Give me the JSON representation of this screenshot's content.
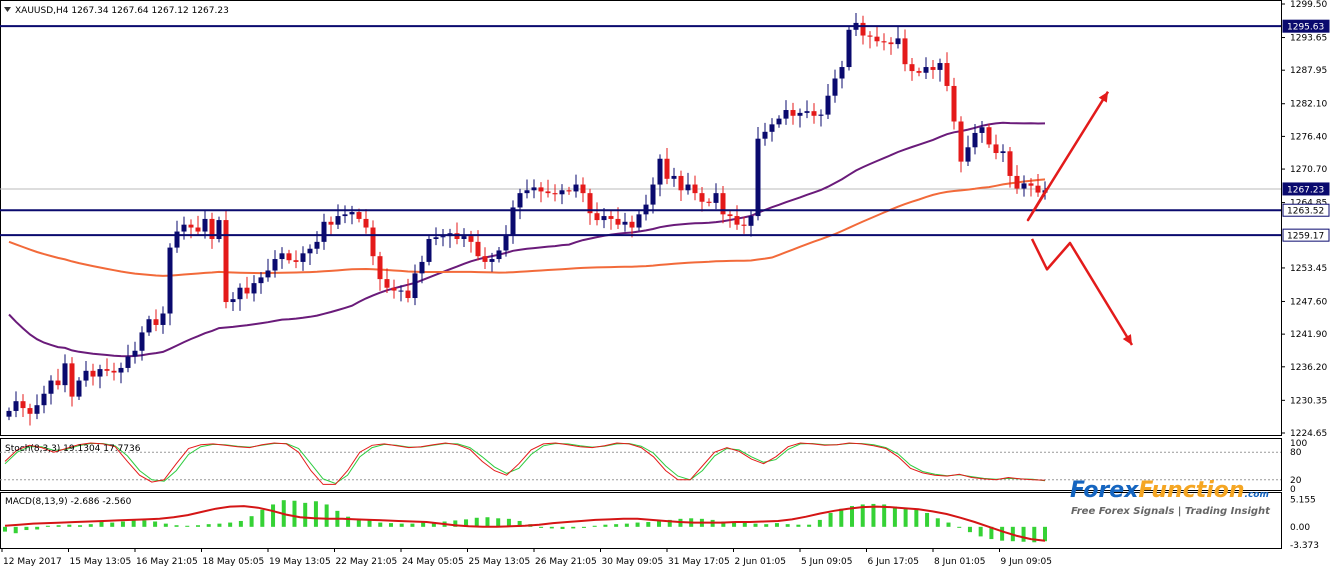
{
  "header": {
    "symbol_line": "XAUUSD,H4  1267.34 1267.64 1267.12 1267.23",
    "dropdown_icon": "triangle-down-icon"
  },
  "colors": {
    "bull_candle": "#0a0a6e",
    "bear_candle": "#e41a1a",
    "level_line": "#0a0a6e",
    "ma_fast": "#6a1b7a",
    "ma_slow": "#f26a3a",
    "arrow": "#e31b1b",
    "stoch_main": "#e41a1a",
    "stoch_signal": "#2ecc40",
    "macd_hist": "#35d235",
    "macd_signal": "#d41515",
    "brand_blue": "#1565c0",
    "brand_orange": "#f5a623"
  },
  "chart_data": [
    {
      "type": "candlestick",
      "title": "XAUUSD,H4",
      "ohlc_readout": [
        1267.34,
        1267.64,
        1267.12,
        1267.23
      ],
      "ylim": [
        1224.65,
        1299.5
      ],
      "y_ticks": [
        "1299.50",
        "1293.65",
        "1287.95",
        "1282.10",
        "1276.40",
        "1270.70",
        "1264.85",
        "1253.45",
        "1247.60",
        "1241.90",
        "1236.20",
        "1230.35",
        "1224.65"
      ],
      "price_labels": [
        {
          "value": 1295.63,
          "text": "1295.63",
          "style": "dark"
        },
        {
          "value": 1267.23,
          "text": "1267.23",
          "style": "dark"
        },
        {
          "value": 1263.52,
          "text": "1263.52",
          "style": "light"
        },
        {
          "value": 1259.17,
          "text": "1259.17",
          "style": "light"
        }
      ],
      "horizontal_levels": [
        1295.63,
        1263.52,
        1259.17
      ],
      "current_price": 1267.23,
      "x_labels": [
        "12 May 2017",
        "15 May 13:05",
        "16 May 21:05",
        "18 May 05:05",
        "19 May 13:05",
        "22 May 21:05",
        "24 May 05:05",
        "25 May 13:05",
        "26 May 21:05",
        "30 May 09:05",
        "31 May 17:05",
        "2 Jun 01:05",
        "5 Jun 09:05",
        "6 Jun 17:05",
        "8 Jun 01:05",
        "9 Jun 09:05"
      ],
      "candle_closes": [
        1228.5,
        1230.2,
        1229.0,
        1228.0,
        1229.5,
        1231.5,
        1233.8,
        1233.0,
        1236.8,
        1231.0,
        1233.8,
        1235.5,
        1234.5,
        1235.8,
        1235.5,
        1235.2,
        1236.0,
        1238.0,
        1239.0,
        1242.2,
        1244.5,
        1243.5,
        1245.5,
        1257.0,
        1259.8,
        1261.0,
        1260.5,
        1259.8,
        1262.0,
        1258.5,
        1261.8,
        1247.5,
        1248.0,
        1250.0,
        1249.0,
        1250.8,
        1251.8,
        1253.0,
        1255.0,
        1256.0,
        1254.8,
        1254.5,
        1256.0,
        1256.8,
        1258.0,
        1261.5,
        1261.0,
        1262.5,
        1262.8,
        1263.2,
        1262.0,
        1260.5,
        1255.5,
        1251.5,
        1250.0,
        1249.5,
        1249.5,
        1248.2,
        1252.5,
        1254.5,
        1258.5,
        1258.8,
        1259.0,
        1259.5,
        1258.5,
        1259.0,
        1258.0,
        1255.5,
        1254.5,
        1255.0,
        1256.5,
        1259.2,
        1264.0,
        1266.5,
        1267.0,
        1267.5,
        1266.8,
        1266.5,
        1266.3,
        1267.0,
        1266.8,
        1268.0,
        1266.5,
        1263.0,
        1261.8,
        1262.5,
        1262.0,
        1261.0,
        1261.5,
        1260.5,
        1262.8,
        1264.5,
        1268.0,
        1272.5,
        1269.0,
        1269.5,
        1267.0,
        1268.0,
        1266.5,
        1265.0,
        1264.8,
        1266.5,
        1262.8,
        1262.5,
        1261.0,
        1260.8,
        1262.5,
        1276.0,
        1277.2,
        1278.5,
        1279.5,
        1281.0,
        1280.0,
        1280.5,
        1280.8,
        1280.0,
        1280.2,
        1283.5,
        1286.5,
        1288.5,
        1295.0,
        1296.2,
        1294.0,
        1293.8,
        1293.0,
        1292.8,
        1292.5,
        1293.5,
        1289.0,
        1287.8,
        1287.5,
        1288.5,
        1288.0,
        1289.2,
        1285.2,
        1279.0,
        1272.0,
        1274.5,
        1277.0,
        1278.0,
        1275.0,
        1273.5,
        1273.8,
        1269.5,
        1267.3,
        1268.2,
        1267.8,
        1266.6,
        1267.0
      ]
    },
    {
      "type": "line",
      "title": "Stoch(8,3,3) 19.1304 17.7736",
      "ylim": [
        0,
        100
      ],
      "y_ticks": [
        "100",
        "80",
        "20",
        "0"
      ],
      "series": [
        {
          "name": "main",
          "values": [
            60,
            85,
            95,
            90,
            80,
            88,
            96,
            100,
            98,
            92,
            60,
            30,
            15,
            20,
            55,
            88,
            96,
            98,
            95,
            92,
            90,
            96,
            100,
            98,
            80,
            40,
            10,
            10,
            40,
            80,
            95,
            98,
            94,
            90,
            92,
            96,
            100,
            96,
            86,
            60,
            40,
            30,
            55,
            85,
            98,
            100,
            96,
            92,
            90,
            94,
            100,
            98,
            90,
            70,
            40,
            20,
            20,
            50,
            80,
            90,
            82,
            65,
            55,
            70,
            92,
            100,
            98,
            95,
            96,
            100,
            98,
            94,
            88,
            70,
            45,
            35,
            30,
            28,
            32,
            25,
            22,
            20,
            25,
            22,
            20,
            19
          ]
        },
        {
          "name": "signal",
          "values": [
            55,
            80,
            92,
            92,
            84,
            86,
            94,
            99,
            99,
            94,
            72,
            40,
            20,
            17,
            40,
            75,
            92,
            97,
            96,
            93,
            91,
            95,
            99,
            99,
            88,
            55,
            22,
            12,
            30,
            70,
            90,
            97,
            95,
            91,
            91,
            95,
            99,
            98,
            90,
            70,
            48,
            34,
            45,
            75,
            94,
            99,
            98,
            94,
            91,
            93,
            98,
            99,
            93,
            78,
            50,
            28,
            20,
            40,
            72,
            88,
            85,
            70,
            58,
            64,
            86,
            98,
            99,
            96,
            96,
            99,
            99,
            96,
            90,
            76,
            52,
            38,
            32,
            29,
            31,
            27,
            23,
            21,
            23,
            22,
            21,
            18
          ]
        }
      ],
      "last_values": [
        19.1304,
        17.7736
      ]
    },
    {
      "type": "bar",
      "title": "MACD(8,13,9) -2.686 -2.560",
      "y_ticks": [
        "5.155",
        "0.00",
        "-3.373"
      ],
      "ylim": [
        -3.6,
        5.6
      ],
      "series": [
        {
          "name": "histogram",
          "values": [
            -0.9,
            -1.2,
            -0.6,
            -0.5,
            0.2,
            0.3,
            0.4,
            0.3,
            0.5,
            0.9,
            0.8,
            1.0,
            1.3,
            1.2,
            1.0,
            0.6,
            0.3,
            0.2,
            0.3,
            0.5,
            0.6,
            0.8,
            1.1,
            2.0,
            3.2,
            4.2,
            5.0,
            4.9,
            4.5,
            4.8,
            4.2,
            3.0,
            1.9,
            1.5,
            1.2,
            0.8,
            0.7,
            0.6,
            0.6,
            0.8,
            0.9,
            1.0,
            1.2,
            1.4,
            1.7,
            1.8,
            1.6,
            1.5,
            1.1,
            0.5,
            -0.2,
            -0.3,
            -0.4,
            -0.3,
            -0.2,
            0.2,
            0.4,
            0.5,
            0.6,
            0.8,
            0.9,
            1.1,
            1.3,
            1.5,
            1.6,
            1.5,
            1.3,
            1.0,
            0.9,
            0.8,
            0.6,
            0.5,
            0.7,
            0.5,
            0.4,
            0.4,
            1.3,
            2.6,
            3.4,
            3.9,
            4.2,
            4.3,
            4.2,
            3.8,
            3.6,
            3.2,
            2.6,
            1.6,
            0.8,
            0.0,
            -1.0,
            -1.8,
            -2.3,
            -2.6,
            -2.7,
            -2.8,
            -2.9,
            -2.7
          ]
        },
        {
          "name": "signal",
          "values": [
            0.2,
            0.4,
            0.6,
            0.7,
            0.8,
            0.9,
            1.0,
            1.1,
            1.2,
            1.3,
            1.4,
            1.5,
            1.8,
            2.2,
            2.8,
            3.4,
            3.8,
            3.9,
            3.6,
            3.0,
            2.3,
            1.8,
            1.6,
            1.5,
            1.5,
            1.4,
            1.3,
            1.2,
            1.1,
            1.0,
            0.9,
            0.6,
            0.3,
            0.1,
            0.0,
            0.0,
            0.1,
            0.2,
            0.4,
            0.7,
            0.9,
            1.1,
            1.3,
            1.4,
            1.5,
            1.5,
            1.3,
            1.1,
            0.9,
            0.8,
            0.8,
            0.8,
            0.9,
            0.9,
            1.0,
            1.1,
            1.4,
            1.9,
            2.5,
            3.0,
            3.4,
            3.7,
            3.8,
            3.7,
            3.5,
            3.3,
            2.9,
            2.4,
            1.7,
            0.9,
            0.0,
            -0.9,
            -1.7,
            -2.3,
            -2.6
          ]
        }
      ],
      "last_values": [
        -2.686,
        -2.56
      ]
    }
  ],
  "brand": {
    "name_part1": "Forex",
    "name_part2": "Function",
    "suffix": ".com",
    "tagline": "Free Forex Signals | Trading Insight"
  }
}
